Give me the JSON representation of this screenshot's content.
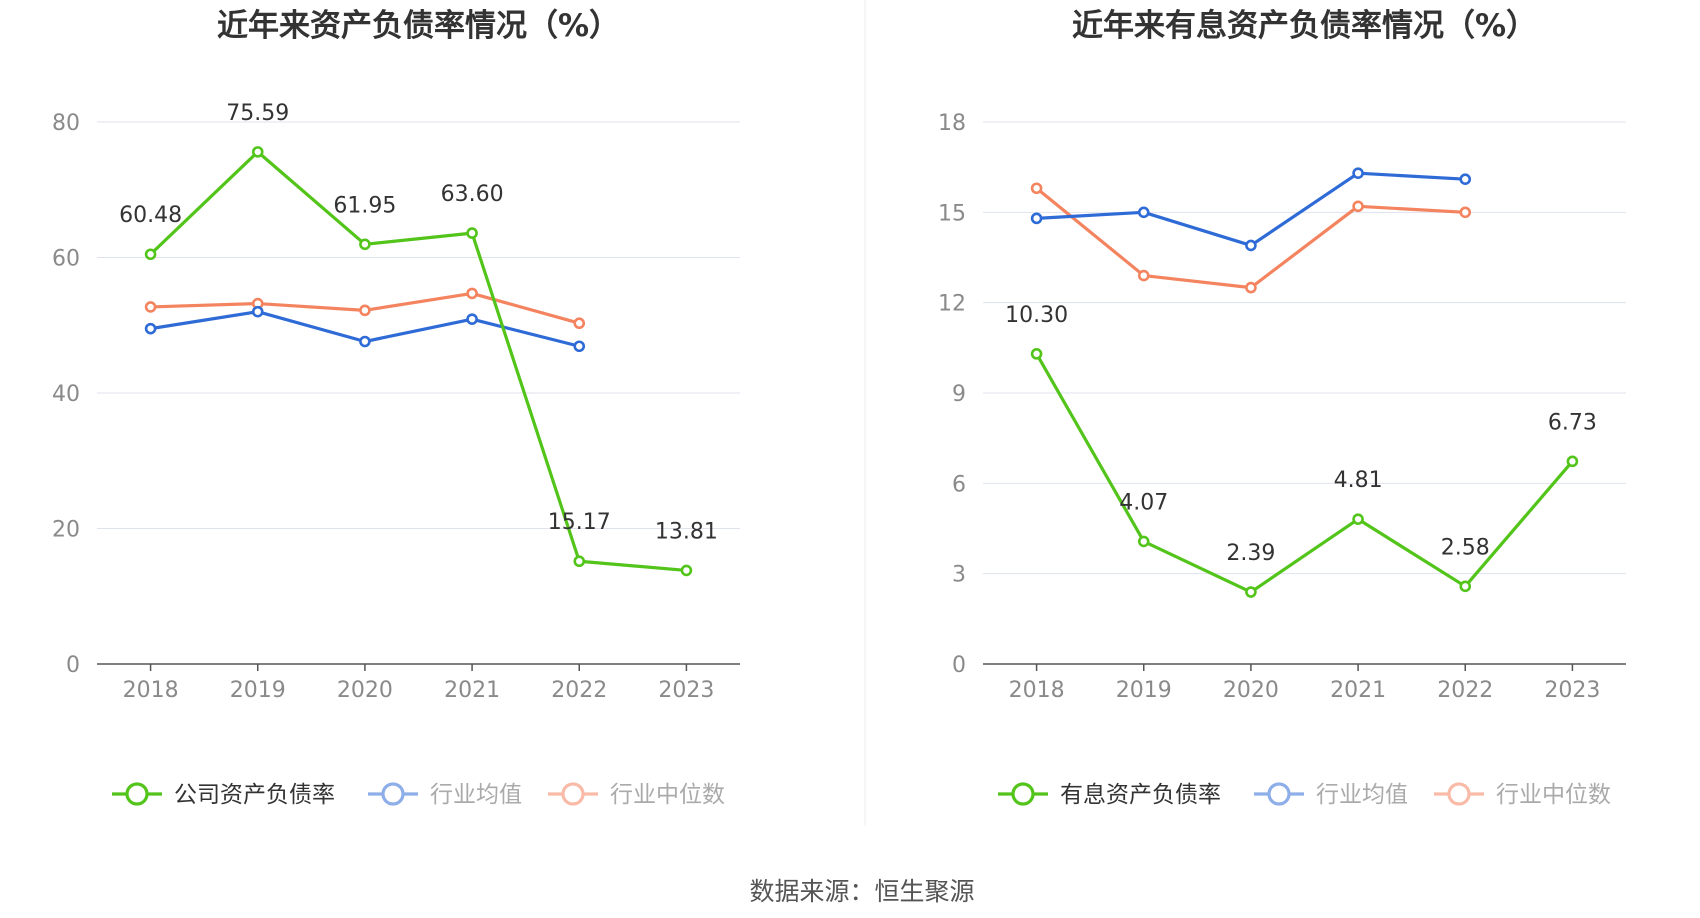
{
  "source_text": "数据来源：恒生聚源",
  "chart_data": [
    {
      "type": "line",
      "title": "近年来资产负债率情况（%）",
      "categories": [
        "2018",
        "2019",
        "2020",
        "2021",
        "2022",
        "2023"
      ],
      "ylim": [
        0,
        80
      ],
      "yticks": [
        0,
        20,
        40,
        60,
        80
      ],
      "grid": true,
      "legend_position": "bottom",
      "series": [
        {
          "name": "公司资产负债率",
          "color": "#52c41a",
          "values": [
            60.48,
            75.59,
            61.95,
            63.6,
            15.17,
            13.81
          ],
          "labels": [
            "60.48",
            "75.59",
            "61.95",
            "63.60",
            "15.17",
            "13.81"
          ]
        },
        {
          "name": "行业均值",
          "color": "#2f6bd6",
          "values": [
            49.5,
            52.0,
            47.6,
            50.9,
            46.9,
            null
          ]
        },
        {
          "name": "行业中位数",
          "color": "#f4845f",
          "values": [
            52.7,
            53.2,
            52.2,
            54.7,
            50.3,
            null
          ]
        }
      ]
    },
    {
      "type": "line",
      "title": "近年来有息资产负债率情况（%）",
      "categories": [
        "2018",
        "2019",
        "2020",
        "2021",
        "2022",
        "2023"
      ],
      "ylim": [
        0,
        18
      ],
      "yticks": [
        0,
        3,
        6,
        9,
        12,
        15,
        18
      ],
      "grid": true,
      "legend_position": "bottom",
      "series": [
        {
          "name": "有息资产负债率",
          "color": "#52c41a",
          "values": [
            10.3,
            4.07,
            2.39,
            4.81,
            2.58,
            6.73
          ],
          "labels": [
            "10.30",
            "4.07",
            "2.39",
            "4.81",
            "2.58",
            "6.73"
          ]
        },
        {
          "name": "行业均值",
          "color": "#2f6bd6",
          "values": [
            14.8,
            15.0,
            13.9,
            16.3,
            16.1,
            null
          ]
        },
        {
          "name": "行业中位数",
          "color": "#f4845f",
          "values": [
            15.8,
            12.9,
            12.5,
            15.2,
            15.0,
            null
          ]
        }
      ]
    }
  ]
}
